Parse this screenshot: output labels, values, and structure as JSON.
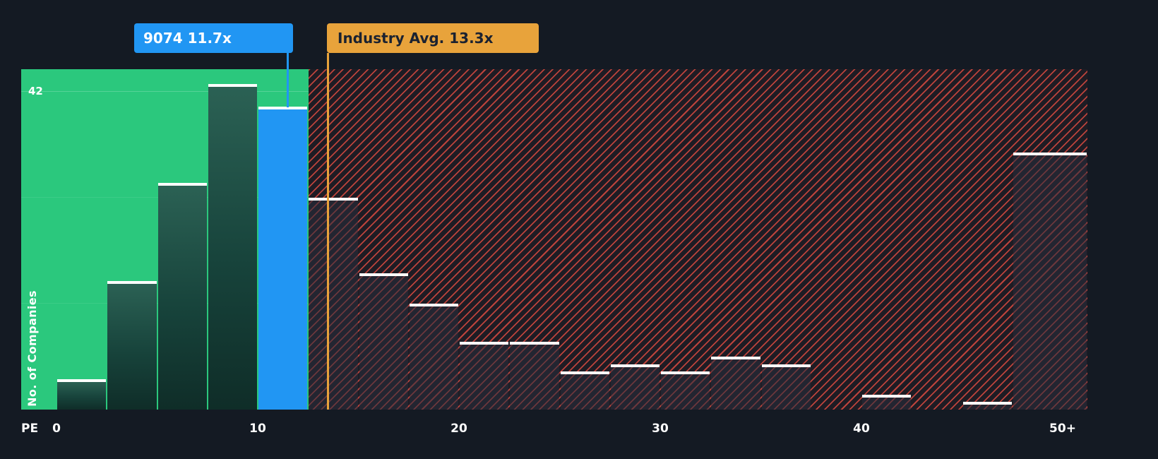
{
  "chart_data": {
    "type": "bar",
    "xlabel": "PE",
    "ylabel": "No. of Companies",
    "y_max_label": "42",
    "ylim": [
      0,
      45
    ],
    "grid": "faint horizontal lines in below-average region only",
    "x_ticks": [
      {
        "label": "0",
        "value": 0
      },
      {
        "label": "10",
        "value": 10
      },
      {
        "label": "20",
        "value": 20
      },
      {
        "label": "30",
        "value": 30
      },
      {
        "label": "40",
        "value": 40
      },
      {
        "label": "50+",
        "value": 50
      }
    ],
    "bucket_width": 2.5,
    "green_region_end_pe": 12.5,
    "gridlines": [
      14,
      28,
      42
    ],
    "buckets": [
      {
        "start": 0,
        "count": 4
      },
      {
        "start": 2.5,
        "count": 17
      },
      {
        "start": 5,
        "count": 30
      },
      {
        "start": 7.5,
        "count": 43
      },
      {
        "start": 10,
        "count": 40,
        "highlight": "company"
      },
      {
        "start": 12.5,
        "count": 28
      },
      {
        "start": 15,
        "count": 18
      },
      {
        "start": 17.5,
        "count": 14
      },
      {
        "start": 20,
        "count": 9
      },
      {
        "start": 22.5,
        "count": 9
      },
      {
        "start": 25,
        "count": 5
      },
      {
        "start": 27.5,
        "count": 6
      },
      {
        "start": 30,
        "count": 5
      },
      {
        "start": 32.5,
        "count": 7
      },
      {
        "start": 35,
        "count": 6
      },
      {
        "start": 37.5,
        "count": 0
      },
      {
        "start": 40,
        "count": 2
      },
      {
        "start": 42.5,
        "count": 0
      },
      {
        "start": 45,
        "count": 1
      },
      {
        "start": 47.5,
        "count": 34
      }
    ],
    "company": {
      "label": "9074 11.7x",
      "pe": 11.7,
      "bucket_count": 40
    },
    "industry_avg": {
      "label": "Industry Avg. 13.3x",
      "pe": 13.3
    },
    "colors": {
      "background": "#141a23",
      "below_avg_region": "#2bc87d",
      "company_accent": "#2196f3",
      "industry_avg_accent": "#e8a33b",
      "hatch_red": "#e44d42",
      "bar_top_cap": "#ffffff",
      "tooltip_text_on_company": "#ffffff",
      "tooltip_text_on_industry": "#1b2230"
    }
  }
}
